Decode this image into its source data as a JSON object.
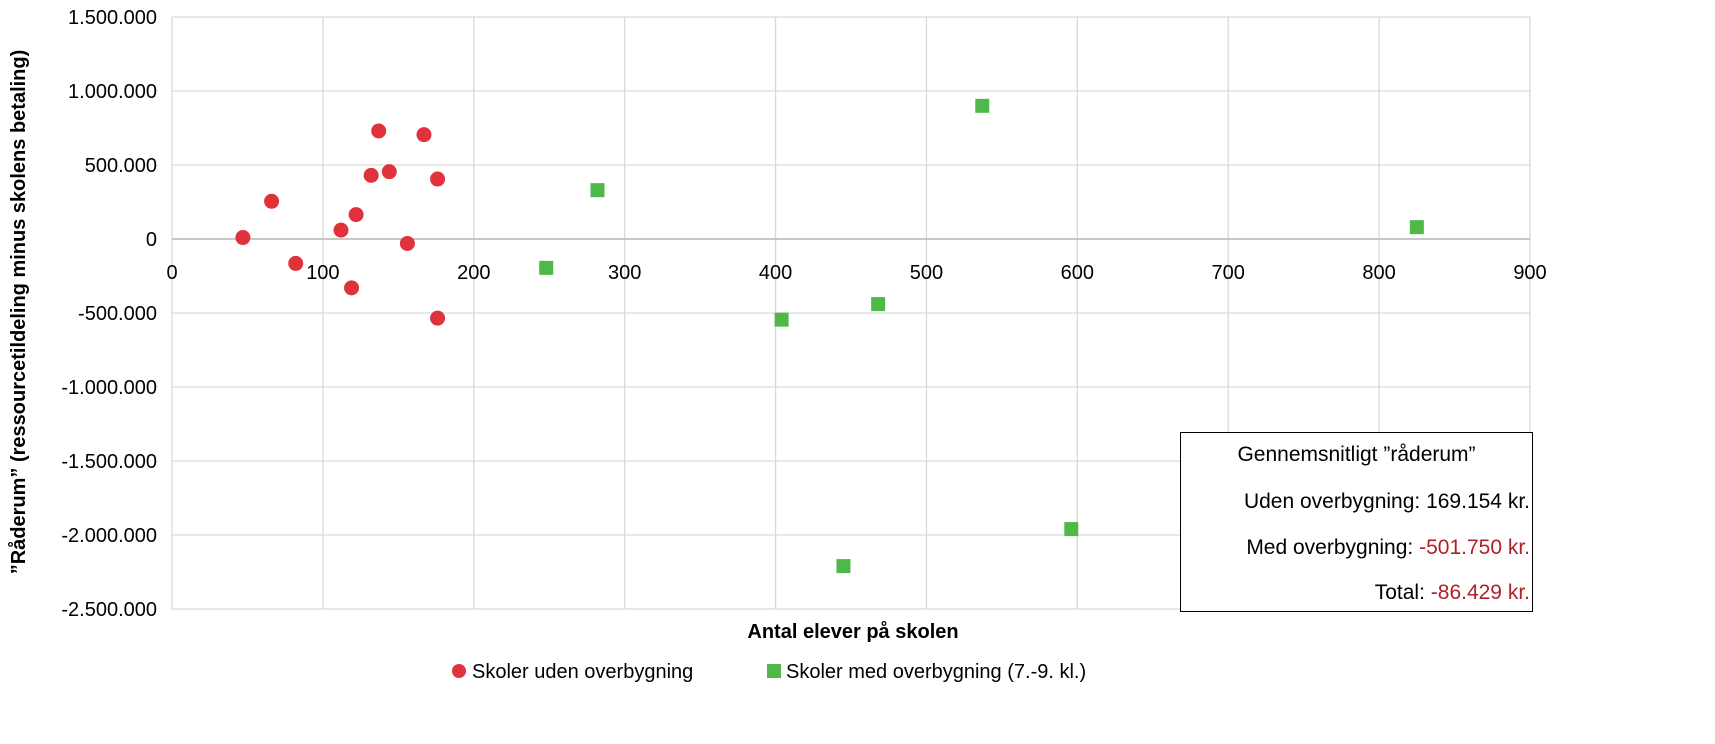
{
  "chart_data": {
    "type": "scatter",
    "xlabel": "Antal elever på skolen",
    "ylabel": "”Råderum” (ressourcetildeling minus skolens betaling)",
    "xlim": [
      0,
      900
    ],
    "ylim": [
      -2500000,
      1500000
    ],
    "x_ticks": [
      "0",
      "100",
      "200",
      "300",
      "400",
      "500",
      "600",
      "700",
      "800",
      "900"
    ],
    "y_ticks": [
      "1.500.000",
      "1.000.000",
      "500.000",
      "0",
      "-500.000",
      "-1.000.000",
      "-1.500.000",
      "-2.000.000",
      "-2.500.000"
    ],
    "grid": true,
    "legend_position": "bottom",
    "series": [
      {
        "name": "Skoler uden overbygning",
        "marker": "circle",
        "color": "#e0323c",
        "points": [
          [
            47,
            10000
          ],
          [
            66,
            255000
          ],
          [
            82,
            -165000
          ],
          [
            112,
            60000
          ],
          [
            119,
            -330000
          ],
          [
            122,
            165000
          ],
          [
            132,
            430000
          ],
          [
            137,
            730000
          ],
          [
            144,
            455000
          ],
          [
            156,
            -30000
          ],
          [
            167,
            705000
          ],
          [
            176,
            405000
          ],
          [
            176,
            -535000
          ]
        ]
      },
      {
        "name": "Skoler med overbygning (7.-9. kl.)",
        "marker": "square",
        "color": "#50b848",
        "points": [
          [
            248,
            -195000
          ],
          [
            282,
            330000
          ],
          [
            404,
            -545000
          ],
          [
            445,
            -2210000
          ],
          [
            468,
            -440000
          ],
          [
            537,
            900000
          ],
          [
            596,
            -1960000
          ],
          [
            825,
            80000
          ]
        ]
      }
    ]
  },
  "info_box": {
    "title": "Gennemsnitligt ”råderum”",
    "uden_label": "Uden overbygning: ",
    "uden_value": "169.154 kr.",
    "med_label": "Med overbygning: ",
    "med_value": "-501.750 kr.",
    "total_label": "Total: ",
    "total_value": "-86.429 kr."
  },
  "colors": {
    "grid": "#d9d9d9",
    "negative_value": "#b0202a"
  }
}
